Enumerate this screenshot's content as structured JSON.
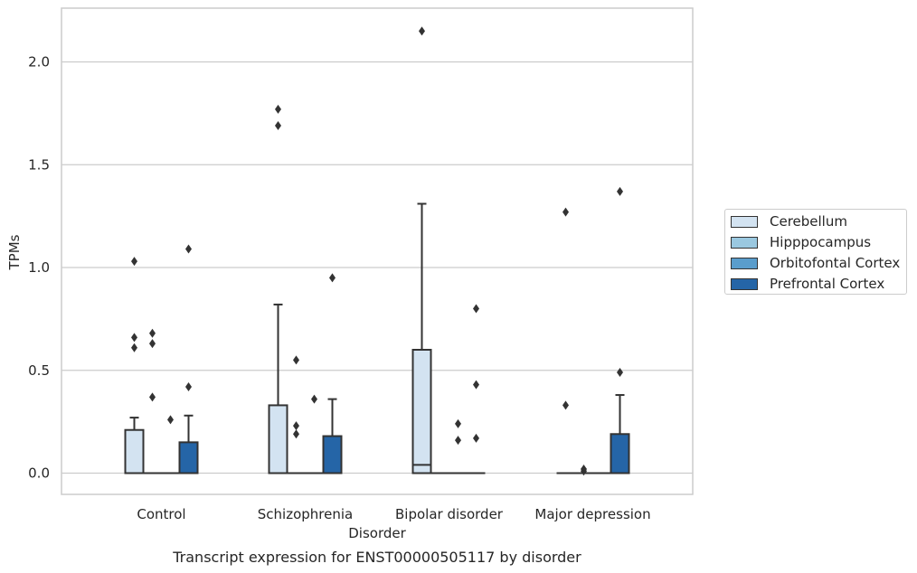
{
  "caption": "Transcript expression for ENST00000505117 by disorder",
  "colors": {
    "Cerebellum": "#d3e3f1",
    "Hipppocampus": "#9ac8e0",
    "Orbitofontal Cortex": "#5a9dcc",
    "Prefrontal Cortex": "#2565a7",
    "box_edge": "#333333",
    "grid": "#cccccc",
    "axis_frame": "#cccccc",
    "text": "#262626"
  },
  "chart_data": {
    "type": "box",
    "title": "",
    "xlabel": "Disorder",
    "ylabel": "TPMs",
    "ylim": [
      -0.1,
      2.27
    ],
    "yticks": [
      "0.0",
      "0.5",
      "1.0",
      "1.5",
      "2.0"
    ],
    "grid": "horizontal",
    "legend_position": "right",
    "categories": [
      "Control",
      "Schizophrenia",
      "Bipolar disorder",
      "Major depression"
    ],
    "series": [
      {
        "name": "Cerebellum",
        "boxes": [
          {
            "q1": 0.0,
            "median": 0.0,
            "q3": 0.21,
            "whisker_low": 0.0,
            "whisker_high": 0.27,
            "outliers": [
              1.03,
              0.66,
              0.61
            ]
          },
          {
            "q1": 0.0,
            "median": 0.0,
            "q3": 0.33,
            "whisker_low": 0.0,
            "whisker_high": 0.82,
            "outliers": [
              1.77,
              1.69
            ]
          },
          {
            "q1": 0.0,
            "median": 0.04,
            "q3": 0.6,
            "whisker_low": 0.0,
            "whisker_high": 1.31,
            "outliers": [
              2.15
            ]
          },
          {
            "q1": 0.0,
            "median": 0.0,
            "q3": 0.0,
            "whisker_low": 0.0,
            "whisker_high": 0.0,
            "outliers": [
              1.27,
              0.33
            ]
          }
        ]
      },
      {
        "name": "Hipppocampus",
        "boxes": [
          {
            "q1": 0.0,
            "median": 0.0,
            "q3": 0.0,
            "whisker_low": 0.0,
            "whisker_high": 0.0,
            "outliers": [
              0.68,
              0.63,
              0.37
            ]
          },
          {
            "q1": 0.0,
            "median": 0.0,
            "q3": 0.0,
            "whisker_low": 0.0,
            "whisker_high": 0.0,
            "outliers": [
              0.55,
              0.23,
              0.19
            ]
          },
          {
            "q1": 0.0,
            "median": 0.0,
            "q3": 0.0,
            "whisker_low": 0.0,
            "whisker_high": 0.0,
            "outliers": []
          },
          {
            "q1": 0.0,
            "median": 0.0,
            "q3": 0.0,
            "whisker_low": 0.0,
            "whisker_high": 0.0,
            "outliers": [
              0.02,
              0.01
            ]
          }
        ]
      },
      {
        "name": "Orbitofontal Cortex",
        "boxes": [
          {
            "q1": 0.0,
            "median": 0.0,
            "q3": 0.0,
            "whisker_low": 0.0,
            "whisker_high": 0.0,
            "outliers": [
              0.26
            ]
          },
          {
            "q1": 0.0,
            "median": 0.0,
            "q3": 0.0,
            "whisker_low": 0.0,
            "whisker_high": 0.0,
            "outliers": [
              0.36
            ]
          },
          {
            "q1": 0.0,
            "median": 0.0,
            "q3": 0.0,
            "whisker_low": 0.0,
            "whisker_high": 0.0,
            "outliers": [
              0.24,
              0.16
            ]
          },
          {
            "q1": 0.0,
            "median": 0.0,
            "q3": 0.0,
            "whisker_low": 0.0,
            "whisker_high": 0.0,
            "outliers": []
          }
        ]
      },
      {
        "name": "Prefrontal Cortex",
        "boxes": [
          {
            "q1": 0.0,
            "median": 0.0,
            "q3": 0.15,
            "whisker_low": 0.0,
            "whisker_high": 0.28,
            "outliers": [
              1.09,
              0.42
            ]
          },
          {
            "q1": 0.0,
            "median": 0.0,
            "q3": 0.18,
            "whisker_low": 0.0,
            "whisker_high": 0.36,
            "outliers": [
              0.95
            ]
          },
          {
            "q1": 0.0,
            "median": 0.0,
            "q3": 0.0,
            "whisker_low": 0.0,
            "whisker_high": 0.0,
            "outliers": [
              0.8,
              0.43,
              0.17
            ]
          },
          {
            "q1": 0.0,
            "median": 0.0,
            "q3": 0.19,
            "whisker_low": 0.0,
            "whisker_high": 0.38,
            "outliers": [
              1.37,
              0.49
            ]
          }
        ]
      }
    ]
  }
}
